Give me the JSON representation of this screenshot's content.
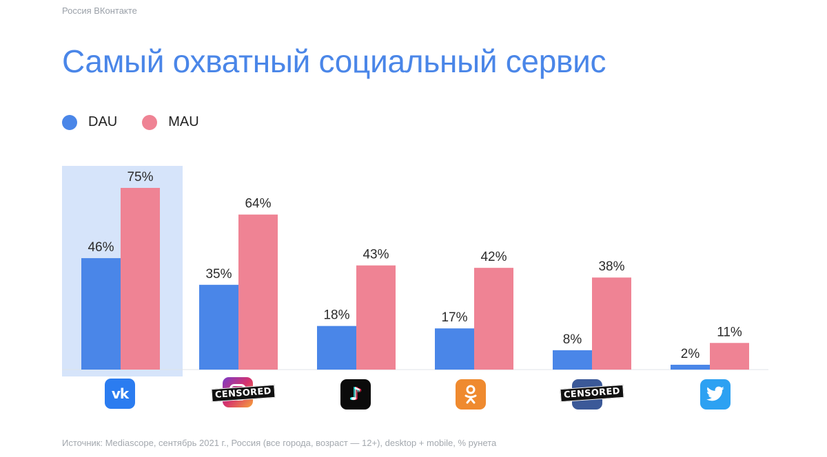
{
  "header": {
    "brand": "Россия ВКонтакте",
    "title": "Самый охватный социальный сервис"
  },
  "legend": [
    {
      "label": "DAU",
      "color": "#4a86e8"
    },
    {
      "label": "MAU",
      "color": "#ef8394"
    }
  ],
  "footer": {
    "source": "Источник: Mediascope, сентябрь 2021 г., Россия (все города, возраст — 12+), desktop + mobile, % рунета"
  },
  "chart_data": {
    "type": "bar",
    "categories": [
      "vk",
      "instagram",
      "tiktok",
      "odnoklassniki",
      "facebook",
      "twitter"
    ],
    "series": [
      {
        "name": "DAU",
        "color": "#4a86e8",
        "values": [
          46,
          35,
          18,
          17,
          8,
          2
        ],
        "labels": [
          "46%",
          "35%",
          "18%",
          "17%",
          "8%",
          "2%"
        ]
      },
      {
        "name": "MAU",
        "color": "#ef8394",
        "values": [
          75,
          64,
          43,
          42,
          38,
          11
        ],
        "labels": [
          "75%",
          "64%",
          "43%",
          "42%",
          "38%",
          "11%"
        ]
      }
    ],
    "highlight_category": "vk",
    "ylim": [
      0,
      75
    ],
    "grid": false,
    "legend_position": "top-left"
  },
  "logos": [
    {
      "name": "vk-logo-icon",
      "color": "#2b7cf0"
    },
    {
      "name": "instagram-logo-icon",
      "color": "#d6336c",
      "censor_label": "CENSORED"
    },
    {
      "name": "tiktok-logo-icon",
      "color": "#0b0b0b"
    },
    {
      "name": "odnoklassniki-logo-icon",
      "color": "#ef8a2f"
    },
    {
      "name": "facebook-logo-icon",
      "color": "#3b5998",
      "censor_label": "CENSORED"
    },
    {
      "name": "twitter-logo-icon",
      "color": "#2da1f2"
    }
  ]
}
